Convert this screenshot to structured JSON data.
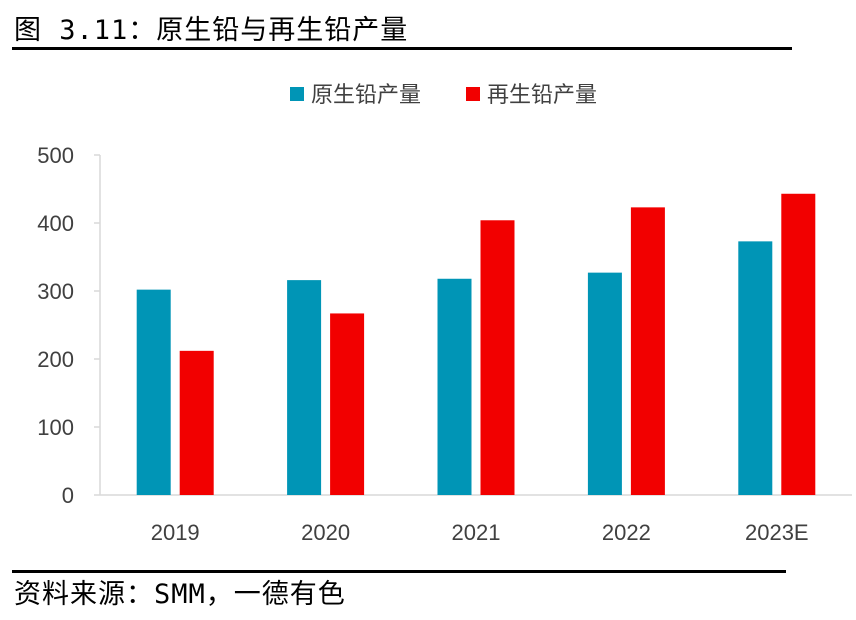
{
  "figure_title": "图 3.11：原生铅与再生铅产量",
  "source_note": "资料来源：SMM，一德有色",
  "colors": {
    "primary_lead": "#0095b6",
    "secondary_lead": "#f20000",
    "axis": "#d9d9d9",
    "text": "#404040"
  },
  "chart_data": {
    "type": "bar",
    "title": "",
    "xlabel": "",
    "ylabel": "",
    "categories": [
      "2019",
      "2020",
      "2021",
      "2022",
      "2023E"
    ],
    "series": [
      {
        "name": "原生铅产量",
        "color": "#0095b6",
        "values": [
          302,
          316,
          318,
          327,
          373
        ]
      },
      {
        "name": "再生铅产量",
        "color": "#f20000",
        "values": [
          212,
          267,
          404,
          423,
          443
        ]
      }
    ],
    "ylim": [
      0,
      500
    ],
    "yticks": [
      0,
      100,
      200,
      300,
      400,
      500
    ],
    "legend_position": "top",
    "grid": false
  }
}
